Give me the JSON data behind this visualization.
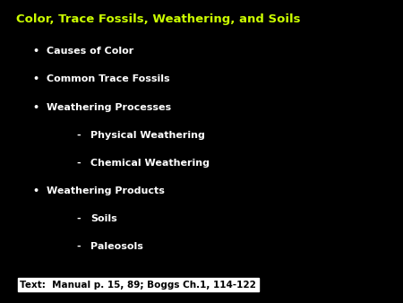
{
  "title": "Color, Trace Fossils, Weathering, and Soils",
  "title_color": "#ccff00",
  "background_color": "#000000",
  "bullet_color": "#ffffff",
  "bullet_items": [
    {
      "text": "Causes of Color",
      "level": 0
    },
    {
      "text": "Common Trace Fossils",
      "level": 0
    },
    {
      "text": "Weathering Processes",
      "level": 0
    },
    {
      "text": "Physical Weathering",
      "level": 1
    },
    {
      "text": "Chemical Weathering",
      "level": 1
    },
    {
      "text": "Weathering Products",
      "level": 0
    },
    {
      "text": "Soils",
      "level": 1
    },
    {
      "text": "Paleosols",
      "level": 1
    }
  ],
  "footnote": "Text:  Manual p. 15, 89; Boggs Ch.1, 114-122",
  "footnote_color": "#000000",
  "footnote_bg": "#ffffff",
  "title_fontsize": 9.5,
  "bullet_fontsize": 8.0,
  "footnote_fontsize": 7.5
}
